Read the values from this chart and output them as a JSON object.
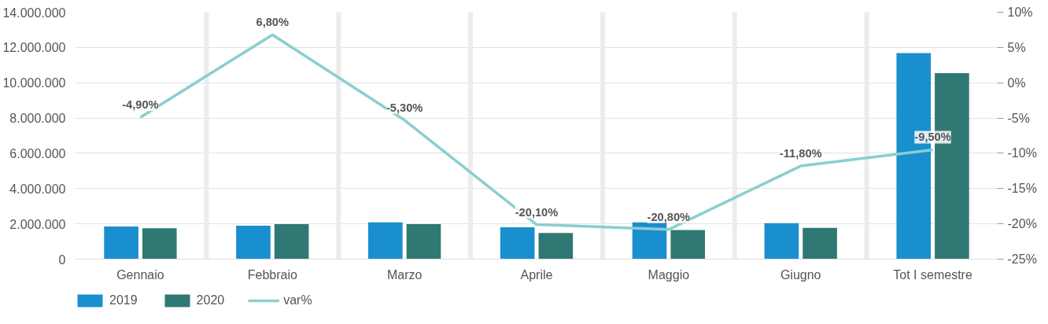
{
  "chart_data": {
    "type": "bar",
    "categories": [
      "Gennaio",
      "Febbraio",
      "Marzo",
      "Aprile",
      "Maggio",
      "Giugno",
      "Tot I semestre"
    ],
    "series": [
      {
        "name": "2019",
        "color": "#1a8fcf",
        "values": [
          1850000,
          1900000,
          2080000,
          1810000,
          2080000,
          2040000,
          11680000
        ]
      },
      {
        "name": "2020",
        "color": "#307873",
        "values": [
          1750000,
          1980000,
          1980000,
          1480000,
          1650000,
          1770000,
          10550000
        ]
      },
      {
        "name": "var%",
        "type": "line",
        "axis": "y2",
        "color": "#8acfcf",
        "values": [
          -4.9,
          6.8,
          -5.3,
          -20.1,
          -20.8,
          -11.8,
          -9.5
        ],
        "value_labels": [
          "-4,90%",
          "6,80%",
          "-5,30%",
          "-20,10%",
          "-20,80%",
          "-11,80%",
          "-9,50%"
        ]
      }
    ],
    "ylim": [
      0,
      14000000
    ],
    "yticks": [
      {
        "value": 0,
        "label": "0"
      },
      {
        "value": 2000000,
        "label": "2.000.000"
      },
      {
        "value": 4000000,
        "label": "4.000.000"
      },
      {
        "value": 6000000,
        "label": "6.000.000"
      },
      {
        "value": 8000000,
        "label": "8.000.000"
      },
      {
        "value": 10000000,
        "label": "10.000.000"
      },
      {
        "value": 12000000,
        "label": "12.000.000"
      },
      {
        "value": 14000000,
        "label": "14.000.000"
      }
    ],
    "y2lim": [
      -25,
      10
    ],
    "y2ticks": [
      {
        "value": -25,
        "label": "-25%"
      },
      {
        "value": -20,
        "label": "-20%"
      },
      {
        "value": -15,
        "label": "-15%"
      },
      {
        "value": -10,
        "label": "-10%"
      },
      {
        "value": -5,
        "label": "-5%"
      },
      {
        "value": 0,
        "label": "0%"
      },
      {
        "value": 5,
        "label": "5%"
      },
      {
        "value": 10,
        "label": "10%"
      }
    ],
    "grid": true,
    "legend": "bottom left"
  }
}
